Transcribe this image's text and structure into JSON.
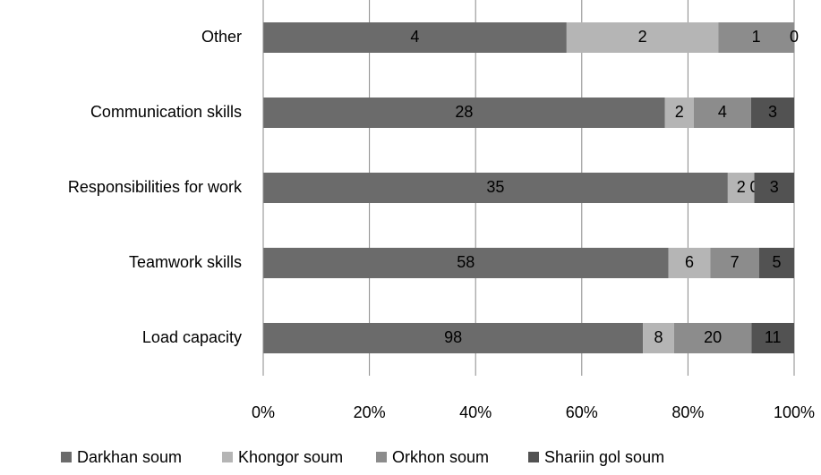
{
  "chart_data": {
    "type": "stacked_bar_100",
    "categories": [
      "Other",
      "Communication skills",
      "Responsibilities for work",
      "Teamwork skills",
      "Load capacity"
    ],
    "series": [
      {
        "name": "Darkhan soum",
        "color": "#6b6b6b",
        "values": [
          4,
          28,
          35,
          58,
          98
        ]
      },
      {
        "name": "Khongor soum",
        "color": "#b5b5b5",
        "values": [
          2,
          2,
          2,
          6,
          8
        ]
      },
      {
        "name": "Orkhon soum",
        "color": "#8c8c8c",
        "values": [
          1,
          4,
          0,
          7,
          20
        ]
      },
      {
        "name": "Shariin gol soum",
        "color": "#525252",
        "values": [
          0,
          3,
          3,
          5,
          11
        ]
      }
    ],
    "xlim": [
      0,
      100
    ],
    "xticks": [
      {
        "value": 0,
        "label": "0%"
      },
      {
        "value": 20,
        "label": "20%"
      },
      {
        "value": 40,
        "label": "40%"
      },
      {
        "value": 60,
        "label": "60%"
      },
      {
        "value": 80,
        "label": "80%"
      },
      {
        "value": 100,
        "label": "100%"
      }
    ],
    "grid": true,
    "legend": "bottom"
  }
}
